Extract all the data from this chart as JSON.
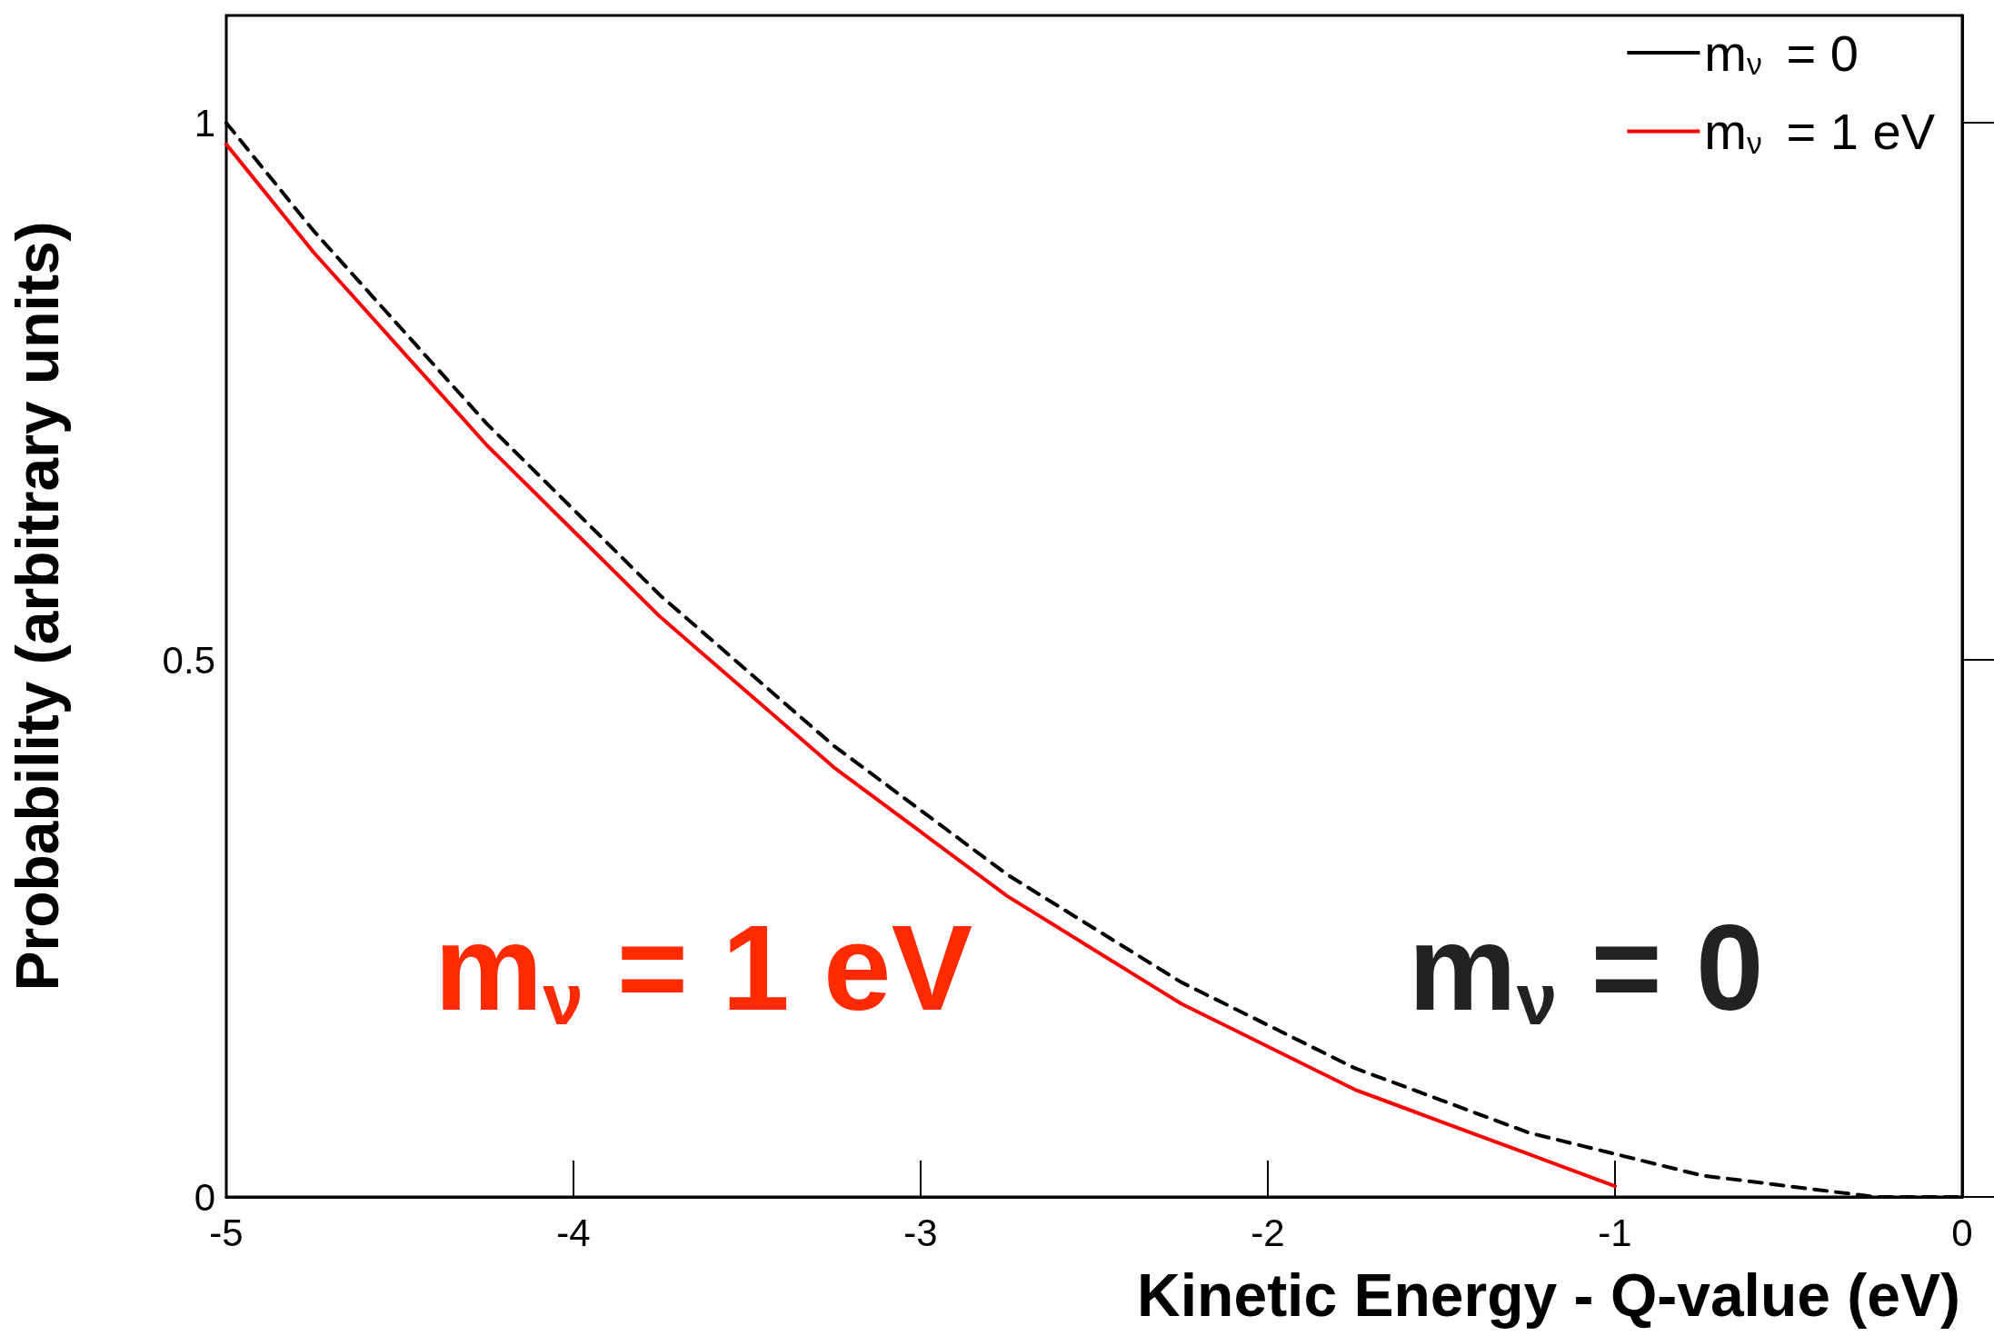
{
  "chart_data": {
    "type": "line",
    "xlabel": "Kinetic Energy - Q-value (eV)",
    "ylabel": "Probability (arbitrary units)",
    "x": [
      -5,
      -4.75,
      -4.5,
      -4.25,
      -4,
      -3.75,
      -3.5,
      -3.25,
      -3,
      -2.75,
      -2.5,
      -2.25,
      -2,
      -1.75,
      -1.5,
      -1.25,
      -1,
      -0.75,
      -0.5,
      -0.25,
      0
    ],
    "series": [
      {
        "name": "m$_{ν}$ = 0",
        "color": "#000000",
        "line_style": "dashed",
        "values": [
          1,
          0.9,
          0.81,
          0.72,
          0.64,
          0.56,
          0.49,
          0.42,
          0.36,
          0.3,
          0.25,
          0.2,
          0.16,
          0.12,
          0.09,
          0.06,
          0.04,
          0.02,
          0.01,
          0,
          0
        ]
      },
      {
        "name": "m$_{ν}$ = 1 eV",
        "color": "#ff0000",
        "line_style": "solid",
        "values": [
          0.98,
          0.88,
          0.79,
          0.7,
          0.62,
          0.54,
          0.47,
          0.4,
          0.34,
          0.28,
          0.23,
          0.18,
          0.14,
          0.1,
          0.07,
          0.04,
          0.01,
          null,
          null,
          null,
          null
        ]
      }
    ],
    "annotations": [
      "m$_{ν}$ = 1 eV",
      "m$_{ν}$ = 0"
    ],
    "xlim": [
      -5,
      0
    ],
    "xticks": [
      -5,
      -4,
      -3,
      -2,
      -1,
      0
    ],
    "ylim": [
      0,
      1.1
    ],
    "yticks": [
      0,
      0.5,
      1
    ],
    "grid": false,
    "legend": "top right",
    "marker": "none"
  }
}
